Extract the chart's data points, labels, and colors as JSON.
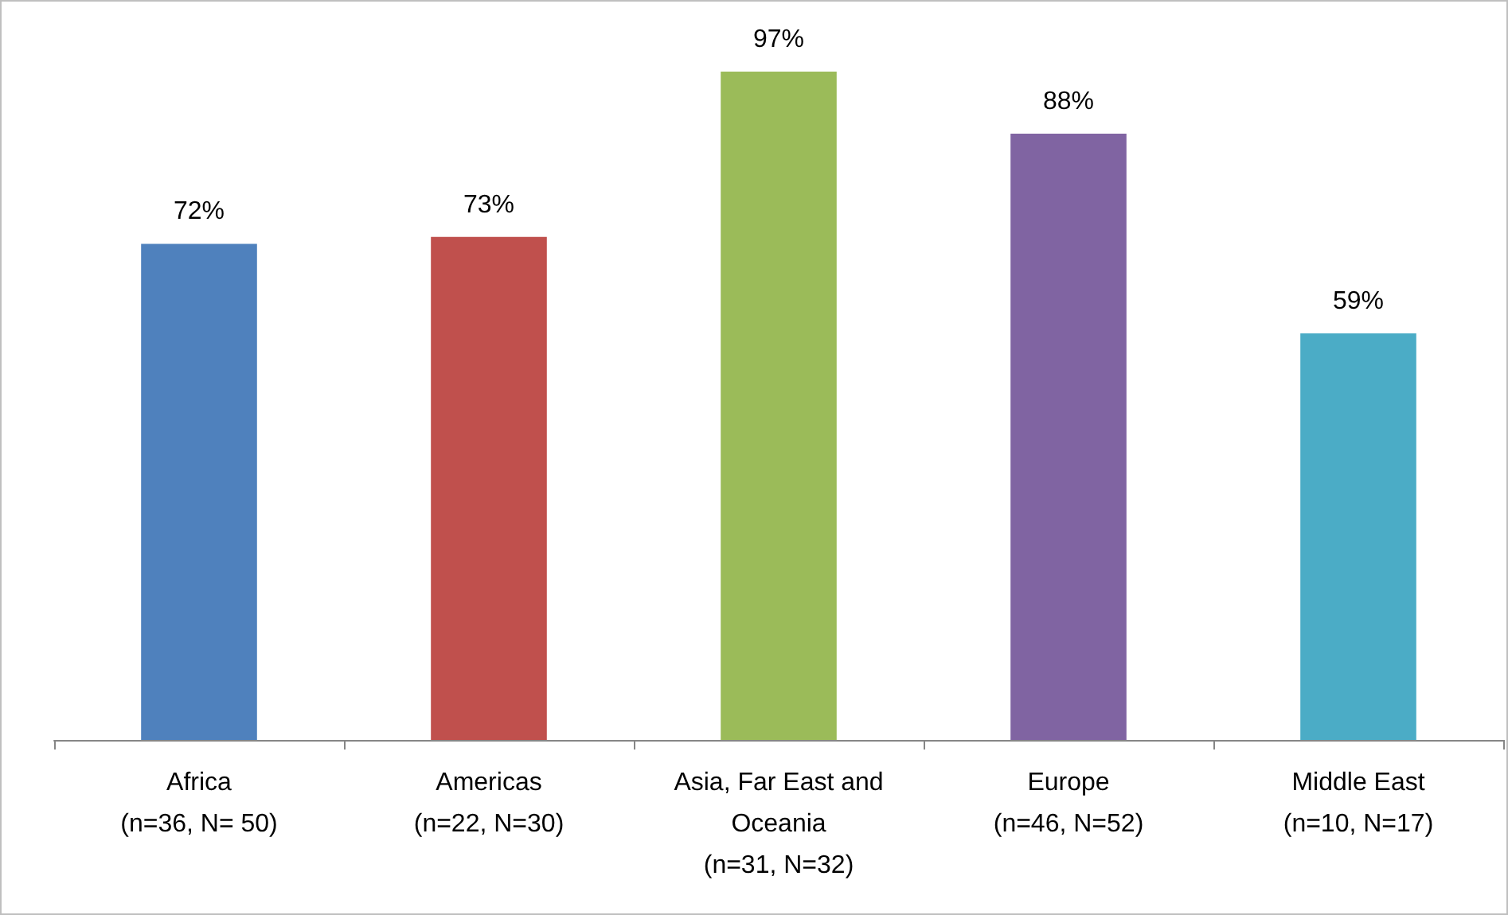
{
  "chart_data": {
    "type": "bar",
    "categories": [
      "Africa\n(n=36, N= 50)",
      "Americas\n(n=22, N=30)",
      "Asia, Far East and\nOceania\n(n=31, N=32)",
      "Europe\n(n=46, N=52)",
      "Middle East\n(n=10, N=17)"
    ],
    "values": [
      72,
      73,
      97,
      88,
      59
    ],
    "colors": [
      "#4f81bd",
      "#c0504d",
      "#9bbb59",
      "#8064a2",
      "#4bacc6"
    ],
    "value_labels": [
      "72%",
      "73%",
      "97%",
      "88%",
      "59%"
    ]
  }
}
